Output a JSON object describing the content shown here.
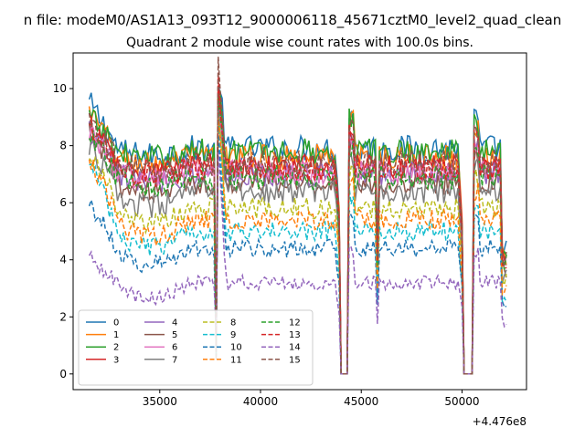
{
  "figure": {
    "suptitle": "n file: modeM0/AS1A13_093T12_9000006118_45671cztM0_level2_quad_clean"
  },
  "chart_data": {
    "type": "line",
    "title": "Quadrant 2 module wise count rates with 100.0s bins.",
    "xlabel": "",
    "ylabel": "",
    "x_offset_label": "+4.476e8",
    "xlim": [
      30700,
      53200
    ],
    "ylim": [
      -0.55,
      11.25
    ],
    "x_ticks": [
      35000,
      40000,
      45000,
      50000
    ],
    "x_tick_labels": [
      "35000",
      "40000",
      "45000",
      "50000"
    ],
    "y_ticks": [
      0,
      2,
      4,
      6,
      8,
      10
    ],
    "y_tick_labels": [
      "0",
      "2",
      "4",
      "6",
      "8",
      "10"
    ],
    "segments": [
      [
        31500,
        37700
      ],
      [
        37900,
        43950
      ],
      [
        44450,
        45700
      ],
      [
        45900,
        49950
      ],
      [
        50700,
        52200
      ]
    ],
    "gaps_at_zero": [
      [
        44000,
        44300
      ],
      [
        50050,
        50550
      ]
    ],
    "legend": {
      "position": "lower-left",
      "columns": 4
    },
    "series": [
      {
        "name": "0",
        "color": "#1f77b4",
        "dash": "solid",
        "level": 7.9,
        "start": 9.5,
        "spike": 10.5
      },
      {
        "name": "1",
        "color": "#ff7f0e",
        "dash": "solid",
        "level": 7.6,
        "start": 9.2,
        "spike": 10.0
      },
      {
        "name": "2",
        "color": "#2ca02c",
        "dash": "solid",
        "level": 7.8,
        "start": 9.0,
        "spike": 10.1
      },
      {
        "name": "3",
        "color": "#d62728",
        "dash": "solid",
        "level": 7.3,
        "start": 8.8,
        "spike": 9.9
      },
      {
        "name": "4",
        "color": "#9467bd",
        "dash": "solid",
        "level": 7.0,
        "start": 8.5,
        "spike": 9.6
      },
      {
        "name": "5",
        "color": "#8c564b",
        "dash": "solid",
        "level": 6.7,
        "start": 8.4,
        "spike": 9.5
      },
      {
        "name": "6",
        "color": "#e377c2",
        "dash": "solid",
        "level": 7.1,
        "start": 8.6,
        "spike": 9.7
      },
      {
        "name": "7",
        "color": "#7f7f7f",
        "dash": "solid",
        "level": 6.4,
        "start": 8.0,
        "spike": 9.3
      },
      {
        "name": "8",
        "color": "#bcbd22",
        "dash": "dashed",
        "level": 5.8,
        "start": 7.8,
        "spike": 9.0
      },
      {
        "name": "9",
        "color": "#17becf",
        "dash": "dashed",
        "level": 5.0,
        "start": 7.5,
        "spike": 8.9
      },
      {
        "name": "10",
        "color": "#1f77b4",
        "dash": "dashed",
        "level": 4.4,
        "start": 6.0,
        "spike": 8.5
      },
      {
        "name": "11",
        "color": "#ff7f0e",
        "dash": "dashed",
        "level": 5.4,
        "start": 7.6,
        "spike": 8.8
      },
      {
        "name": "12",
        "color": "#2ca02c",
        "dash": "dashed",
        "level": 6.9,
        "start": 8.3,
        "spike": 9.8
      },
      {
        "name": "13",
        "color": "#d62728",
        "dash": "dashed",
        "level": 7.2,
        "start": 8.7,
        "spike": 10.2
      },
      {
        "name": "14",
        "color": "#9467bd",
        "dash": "dashed",
        "level": 3.2,
        "start": 4.1,
        "spike": 7.8
      },
      {
        "name": "15",
        "color": "#8c564b",
        "dash": "dashed",
        "level": 7.4,
        "start": 9.0,
        "spike": 10.7
      }
    ]
  }
}
